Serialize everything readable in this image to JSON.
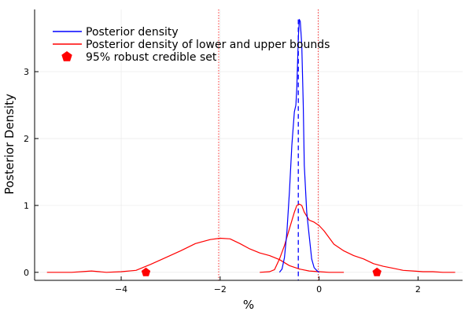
{
  "chart_data": {
    "type": "line",
    "xlabel": "%",
    "ylabel": "Posterior Density",
    "xlim": [
      -5.75,
      2.9
    ],
    "ylim": [
      -0.12,
      3.93
    ],
    "x_ticks": [
      -4,
      -2,
      0,
      2
    ],
    "x_tick_labels": [
      "−4",
      "−2",
      "0",
      "2"
    ],
    "y_ticks": [
      0,
      1,
      2,
      3
    ],
    "y_tick_labels": [
      "0",
      "1",
      "2",
      "3"
    ],
    "grid": true,
    "legend_position": "top-left",
    "colors": {
      "blue": "#0000ff",
      "red": "#ff0000",
      "grid": "#e6e6e6"
    },
    "series": [
      {
        "name": "Posterior density",
        "color": "#0000ff",
        "x": [
          -0.8,
          -0.75,
          -0.7,
          -0.65,
          -0.6,
          -0.55,
          -0.5,
          -0.47,
          -0.45,
          -0.42,
          -0.4,
          -0.38,
          -0.35,
          -0.32,
          -0.3,
          -0.25,
          -0.2,
          -0.15,
          -0.1,
          -0.05,
          0.0
        ],
        "y": [
          0.0,
          0.05,
          0.22,
          0.6,
          1.2,
          1.9,
          2.4,
          2.5,
          2.75,
          3.5,
          3.78,
          3.75,
          3.4,
          2.5,
          1.6,
          0.9,
          0.55,
          0.2,
          0.07,
          0.03,
          0.0
        ]
      },
      {
        "name": "Posterior density of lower and upper bounds",
        "color": "#ff0000",
        "segments": [
          {
            "x": [
              -5.5,
              -5.0,
              -4.6,
              -4.3,
              -4.0,
              -3.7,
              -3.4,
              -3.1,
              -2.8,
              -2.5,
              -2.2,
              -2.0,
              -1.8,
              -1.6,
              -1.4,
              -1.2,
              -1.0,
              -0.8,
              -0.6,
              -0.4,
              -0.2,
              0.0,
              0.2,
              0.4,
              0.5
            ],
            "y": [
              0.0,
              0.0,
              0.02,
              0.0,
              0.01,
              0.03,
              0.12,
              0.22,
              0.32,
              0.43,
              0.49,
              0.51,
              0.5,
              0.43,
              0.35,
              0.29,
              0.25,
              0.19,
              0.1,
              0.05,
              0.02,
              0.01,
              0.0,
              0.0,
              0.0
            ]
          },
          {
            "x": [
              -1.2,
              -1.0,
              -0.9,
              -0.8,
              -0.7,
              -0.6,
              -0.5,
              -0.45,
              -0.4,
              -0.35,
              -0.3,
              -0.2,
              -0.1,
              0.0,
              0.1,
              0.2,
              0.3,
              0.5,
              0.7,
              0.9,
              1.1,
              1.3,
              1.5,
              1.7,
              1.9,
              2.1,
              2.3,
              2.5,
              2.75
            ],
            "y": [
              0.0,
              0.01,
              0.04,
              0.2,
              0.4,
              0.65,
              0.9,
              1.0,
              1.02,
              1.0,
              0.9,
              0.78,
              0.75,
              0.7,
              0.62,
              0.52,
              0.42,
              0.32,
              0.25,
              0.2,
              0.13,
              0.09,
              0.06,
              0.03,
              0.02,
              0.01,
              0.01,
              0.0,
              0.0
            ]
          }
        ]
      },
      {
        "name": "95% robust credible set",
        "color": "#ff0000",
        "marker": "pentagon",
        "points": [
          {
            "x": -3.5,
            "y": 0.0
          },
          {
            "x": 1.17,
            "y": 0.0
          }
        ]
      }
    ],
    "vertical_lines": [
      {
        "x": -0.42,
        "y_top": 3.78,
        "color": "#0000ff",
        "style": "dashed"
      },
      {
        "x": -2.03,
        "color": "#ff0000",
        "style": "dotted"
      },
      {
        "x": -0.02,
        "color": "#ff0000",
        "style": "dotted"
      }
    ]
  }
}
